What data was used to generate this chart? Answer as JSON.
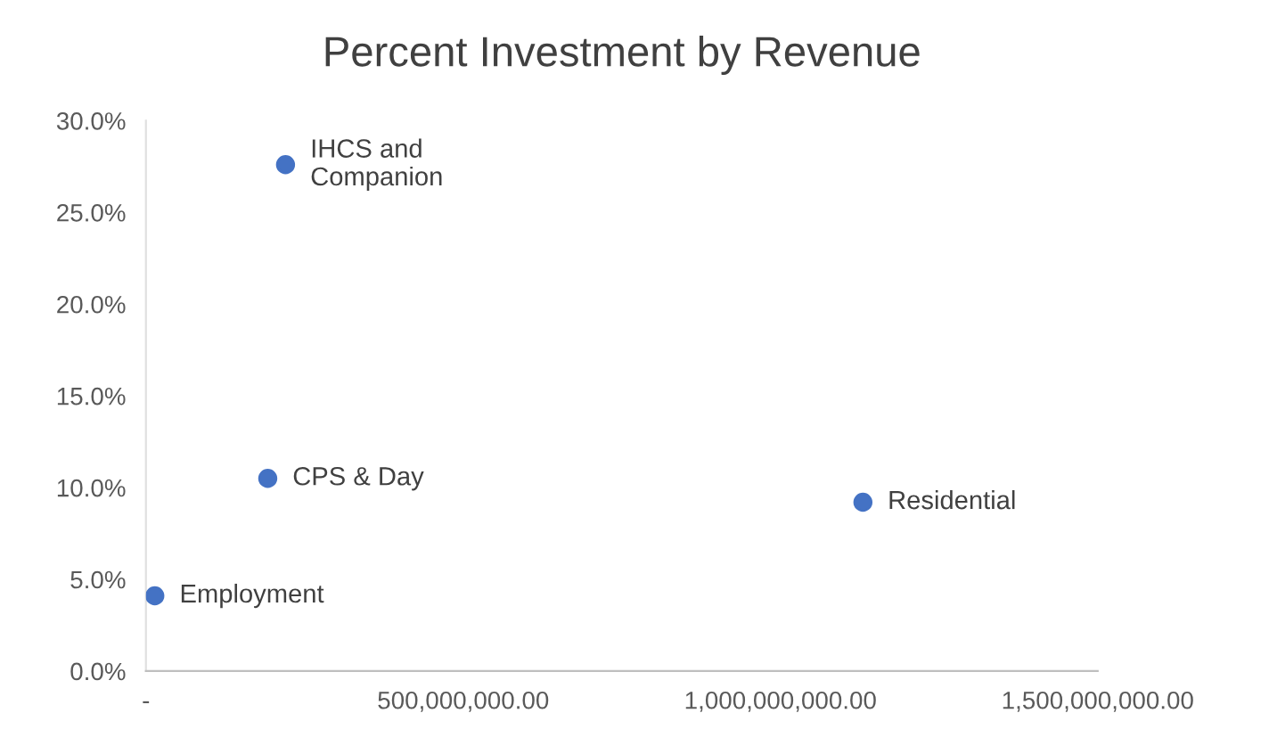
{
  "chart_data": {
    "type": "scatter",
    "title": "Percent Investment by Revenue",
    "series": [
      {
        "color": "#4472c4",
        "x": [
          14000000,
          192000000,
          220000000,
          1130000000
        ],
        "values": [
          4.1,
          10.5,
          27.6,
          9.2
        ]
      }
    ],
    "annotations": [
      {
        "text": "Employment",
        "x": 14000000,
        "y": 4.1
      },
      {
        "text": "CPS & Day",
        "x": 192000000,
        "y": 10.5
      },
      {
        "text": "IHCS and\nCompanion",
        "x": 220000000,
        "y": 27.6
      },
      {
        "text": "Residential",
        "x": 1130000000,
        "y": 9.2
      }
    ],
    "xlim": [
      0,
      1500000000
    ],
    "xticks": [
      {
        "value": 0,
        "label": "-"
      },
      {
        "value": 500000000,
        "label": "500,000,000.00"
      },
      {
        "value": 1000000000,
        "label": "1,000,000,000.00"
      },
      {
        "value": 1500000000,
        "label": "1,500,000,000.00"
      }
    ],
    "ylim": [
      0,
      30
    ],
    "yticks": [
      {
        "value": 0,
        "label": "0.0%"
      },
      {
        "value": 5,
        "label": "5.0%"
      },
      {
        "value": 10,
        "label": "10.0%"
      },
      {
        "value": 15,
        "label": "15.0%"
      },
      {
        "value": 20,
        "label": "20.0%"
      },
      {
        "value": 25,
        "label": "25.0%"
      },
      {
        "value": 30,
        "label": "30.0%"
      }
    ],
    "grid": false,
    "legend": false,
    "marker": "circle"
  }
}
